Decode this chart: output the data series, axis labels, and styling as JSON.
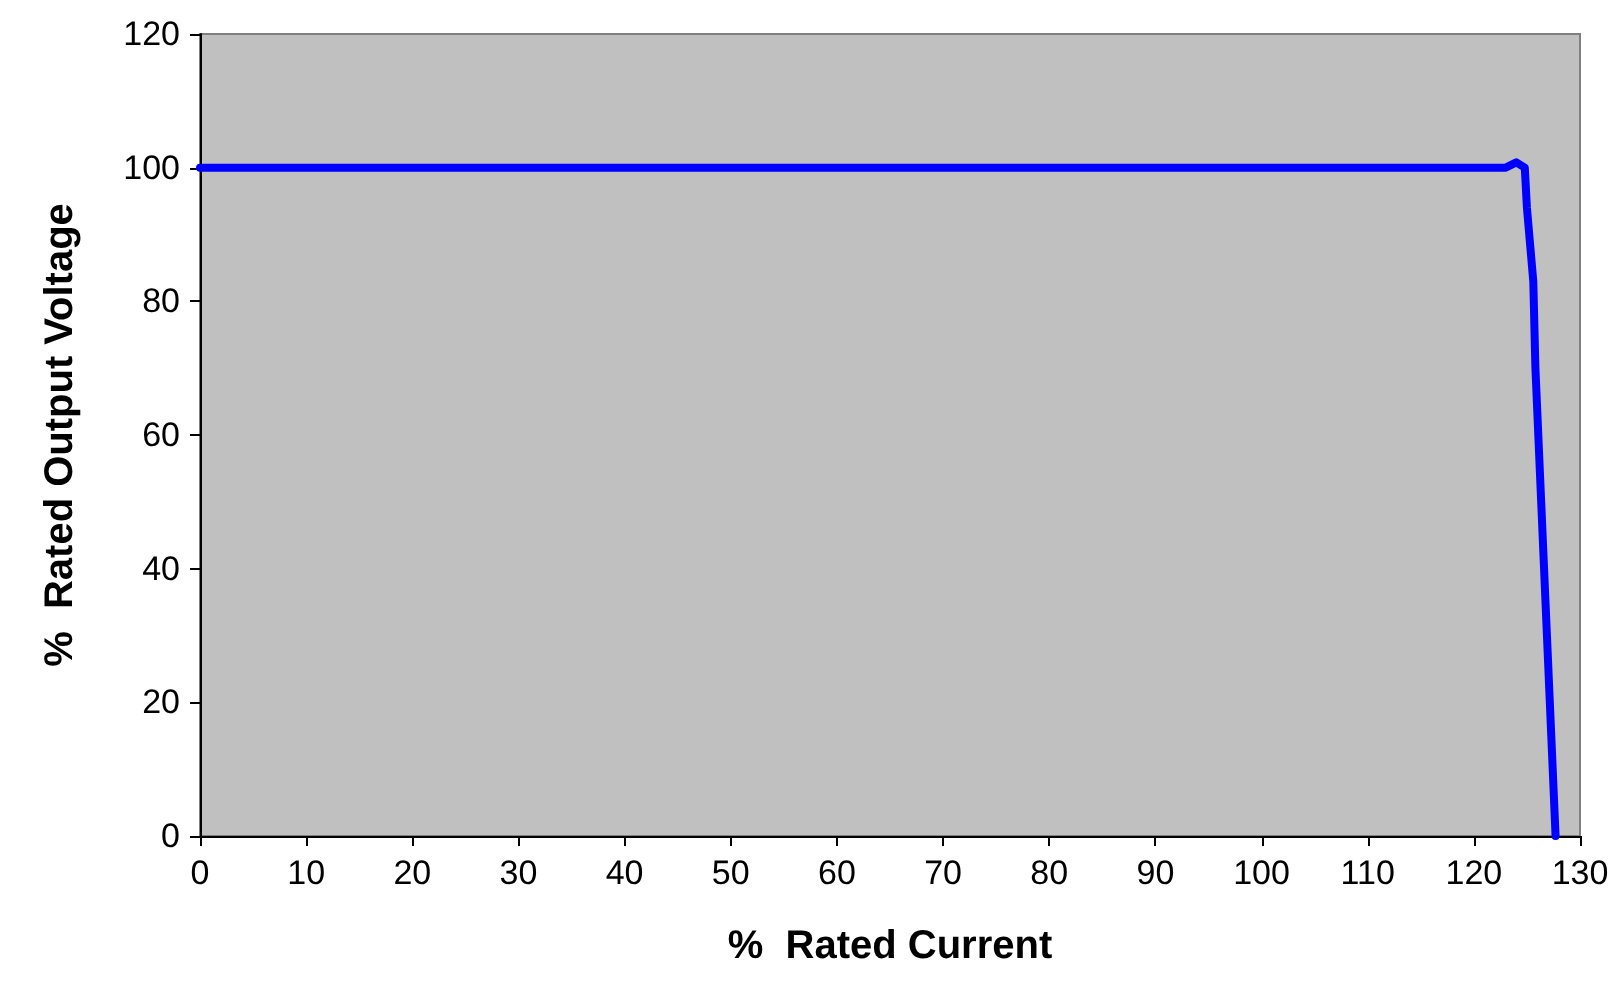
{
  "chart_data": {
    "type": "line",
    "xlabel": "%  Rated Current",
    "ylabel": "%  Rated Output Voltage",
    "x": [
      0,
      120,
      123,
      124,
      124.8,
      125,
      125.6,
      125.8,
      127.7
    ],
    "series": [
      {
        "color": "#0000ff",
        "values": [
          100,
          100,
          100,
          100.8,
          100,
          94,
          83,
          70,
          0
        ]
      }
    ],
    "xlim": [
      0,
      130
    ],
    "xticks": [
      0,
      10,
      20,
      30,
      40,
      50,
      60,
      70,
      80,
      90,
      100,
      110,
      120,
      130
    ],
    "ylim": [
      0,
      120
    ],
    "yticks": [
      0,
      20,
      40,
      60,
      80,
      100,
      120
    ],
    "marker": "none",
    "line_style": "solid"
  }
}
